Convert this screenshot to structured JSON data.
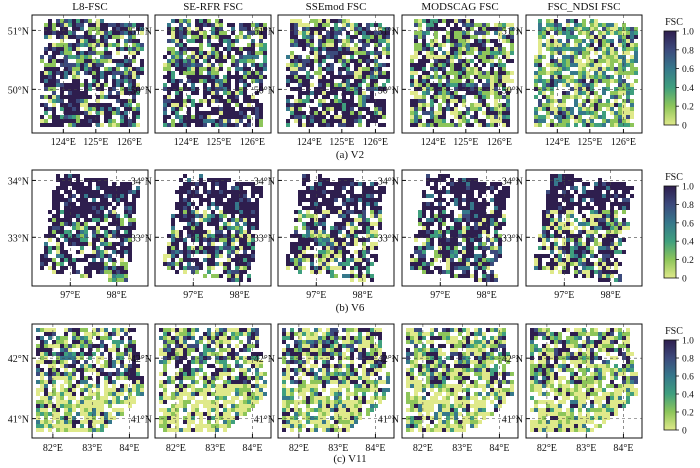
{
  "columns": [
    "L8-FSC",
    "SE-RFR FSC",
    "SSEmod FSC",
    "MODSCAG FSC",
    "FSC_NDSI FSC"
  ],
  "colorbar": {
    "label": "FSC",
    "ticks": [
      "1.0",
      "0.8",
      "0.6",
      "0.4",
      "0.2",
      "0"
    ],
    "colors": [
      "#2e1e4e",
      "#3c4a7c",
      "#36788b",
      "#3f9f7e",
      "#8dc55a",
      "#dfe98a"
    ]
  },
  "rows": [
    {
      "caption": "(a) V2",
      "ylabels": [
        "51°N",
        "50°N"
      ],
      "xlabels": [
        "124°E",
        "125°E",
        "126°E"
      ]
    },
    {
      "caption": "(b) V6",
      "ylabels": [
        "34°N",
        "33°N"
      ],
      "xlabels": [
        "97°E",
        "98°E"
      ]
    },
    {
      "caption": "(c) V11",
      "ylabels": [
        "42°N",
        "41°N"
      ],
      "xlabels": [
        "82°E",
        "83°E",
        "84°E"
      ]
    }
  ]
}
